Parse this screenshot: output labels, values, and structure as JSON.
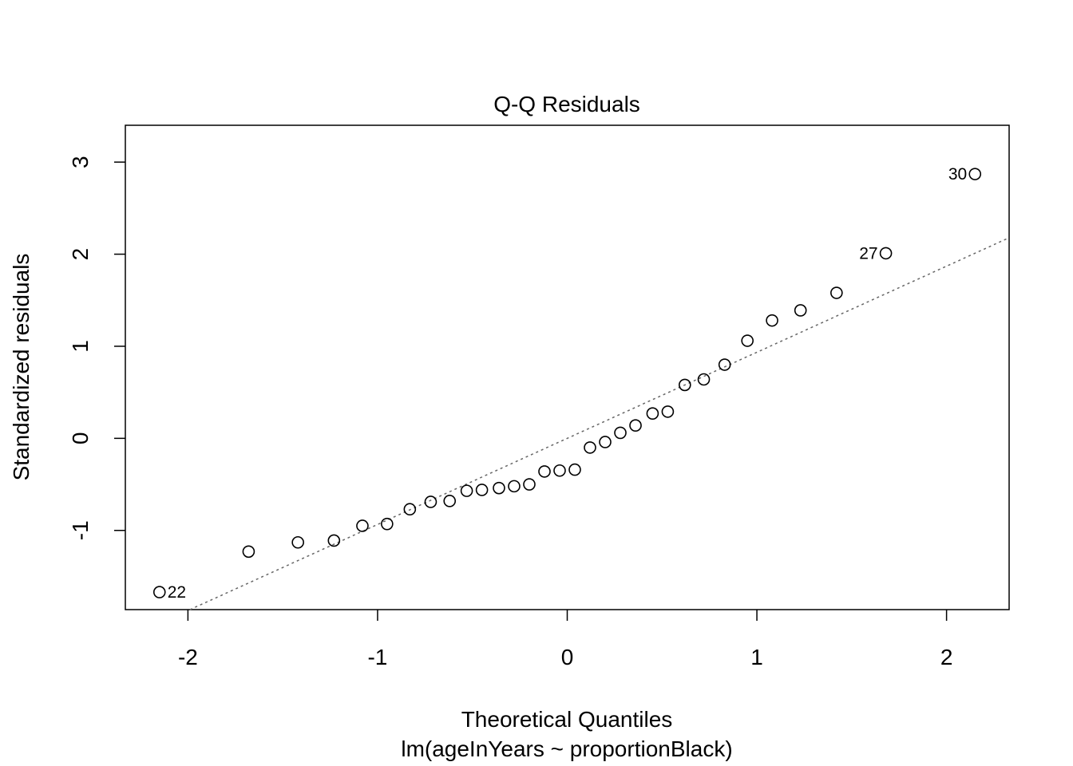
{
  "chart_data": {
    "type": "scatter",
    "title": "Q-Q Residuals",
    "xlabel": "Theoretical Quantiles",
    "xlabel_sub": "lm(ageInYears ~ proportionBlack)",
    "ylabel": "Standardized residuals",
    "xlim": [
      -2.33,
      2.33
    ],
    "ylim": [
      -1.86,
      3.4
    ],
    "x_ticks": [
      -2,
      -1,
      0,
      1,
      2
    ],
    "x_tick_labels": [
      "-2",
      "-1",
      "0",
      "1",
      "2"
    ],
    "y_ticks": [
      -1,
      0,
      1,
      2,
      3
    ],
    "y_tick_labels": [
      "-1",
      "0",
      "1",
      "2",
      "3"
    ],
    "grid": false,
    "reference_line": {
      "style": "dotted",
      "color": "#666666",
      "slope": 0.935,
      "intercept": 0.0
    },
    "points": [
      {
        "x": -2.15,
        "y": -1.67,
        "label": "22"
      },
      {
        "x": -1.68,
        "y": -1.23
      },
      {
        "x": -1.42,
        "y": -1.13
      },
      {
        "x": -1.23,
        "y": -1.11
      },
      {
        "x": -1.08,
        "y": -0.95
      },
      {
        "x": -0.95,
        "y": -0.93
      },
      {
        "x": -0.83,
        "y": -0.77
      },
      {
        "x": -0.72,
        "y": -0.69
      },
      {
        "x": -0.62,
        "y": -0.68
      },
      {
        "x": -0.53,
        "y": -0.57
      },
      {
        "x": -0.45,
        "y": -0.56
      },
      {
        "x": -0.36,
        "y": -0.54
      },
      {
        "x": -0.28,
        "y": -0.52
      },
      {
        "x": -0.2,
        "y": -0.5
      },
      {
        "x": -0.12,
        "y": -0.36
      },
      {
        "x": -0.04,
        "y": -0.35
      },
      {
        "x": 0.04,
        "y": -0.34
      },
      {
        "x": 0.12,
        "y": -0.1
      },
      {
        "x": 0.2,
        "y": -0.04
      },
      {
        "x": 0.28,
        "y": 0.06
      },
      {
        "x": 0.36,
        "y": 0.14
      },
      {
        "x": 0.45,
        "y": 0.27
      },
      {
        "x": 0.53,
        "y": 0.29
      },
      {
        "x": 0.62,
        "y": 0.58
      },
      {
        "x": 0.72,
        "y": 0.64
      },
      {
        "x": 0.83,
        "y": 0.8
      },
      {
        "x": 0.95,
        "y": 1.06
      },
      {
        "x": 1.08,
        "y": 1.28
      },
      {
        "x": 1.23,
        "y": 1.39
      },
      {
        "x": 1.42,
        "y": 1.58
      },
      {
        "x": 1.68,
        "y": 2.01,
        "label": "27"
      },
      {
        "x": 2.15,
        "y": 2.87,
        "label": "30"
      }
    ]
  }
}
